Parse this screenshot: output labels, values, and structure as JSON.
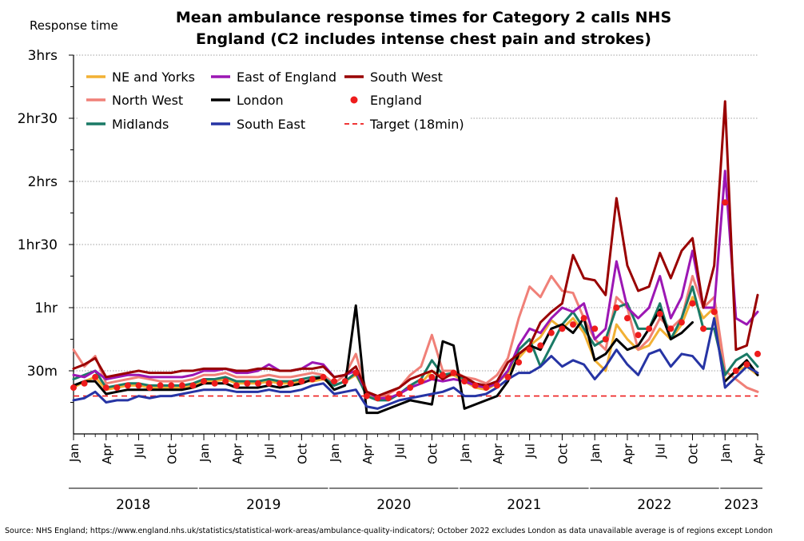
{
  "chart_data": {
    "type": "line",
    "title": [
      "Mean ambulance response times for Category 2 calls NHS",
      "England (C2 includes intense chest pain and strokes)"
    ],
    "ylabel": "Response time",
    "y_unit": "minutes",
    "ylim": [
      0,
      180
    ],
    "y_ticks": [
      {
        "value": 30,
        "label": "30m"
      },
      {
        "value": 60,
        "label": "1hr"
      },
      {
        "value": 90,
        "label": "1hr30"
      },
      {
        "value": 120,
        "label": "2hrs"
      },
      {
        "value": 150,
        "label": "2hr30"
      },
      {
        "value": 180,
        "label": "3hrs"
      }
    ],
    "grid": true,
    "legend_position": "top-left",
    "x_start": "2018-01",
    "x_end": "2023-04",
    "x": [
      "2018-01",
      "2018-02",
      "2018-03",
      "2018-04",
      "2018-05",
      "2018-06",
      "2018-07",
      "2018-08",
      "2018-09",
      "2018-10",
      "2018-11",
      "2018-12",
      "2019-01",
      "2019-02",
      "2019-03",
      "2019-04",
      "2019-05",
      "2019-06",
      "2019-07",
      "2019-08",
      "2019-09",
      "2019-10",
      "2019-11",
      "2019-12",
      "2020-01",
      "2020-02",
      "2020-03",
      "2020-04",
      "2020-05",
      "2020-06",
      "2020-07",
      "2020-08",
      "2020-09",
      "2020-10",
      "2020-11",
      "2020-12",
      "2021-01",
      "2021-02",
      "2021-03",
      "2021-04",
      "2021-05",
      "2021-06",
      "2021-07",
      "2021-08",
      "2021-09",
      "2021-10",
      "2021-11",
      "2021-12",
      "2022-01",
      "2022-02",
      "2022-03",
      "2022-04",
      "2022-05",
      "2022-06",
      "2022-07",
      "2022-08",
      "2022-09",
      "2022-10",
      "2022-11",
      "2022-12",
      "2023-01",
      "2023-02",
      "2023-03",
      "2023-04"
    ],
    "x_tick_labels": [
      {
        "x": "2018-01",
        "label": "Jan"
      },
      {
        "x": "2018-04",
        "label": "Apr"
      },
      {
        "x": "2018-07",
        "label": "Jul"
      },
      {
        "x": "2018-10",
        "label": "Oct"
      },
      {
        "x": "2019-01",
        "label": "Jan"
      },
      {
        "x": "2019-04",
        "label": "Apr"
      },
      {
        "x": "2019-07",
        "label": "Jul"
      },
      {
        "x": "2019-10",
        "label": "Oct"
      },
      {
        "x": "2020-01",
        "label": "Jan"
      },
      {
        "x": "2020-04",
        "label": "Apr"
      },
      {
        "x": "2020-07",
        "label": "Jul"
      },
      {
        "x": "2020-10",
        "label": "Oct"
      },
      {
        "x": "2021-01",
        "label": "Jan"
      },
      {
        "x": "2021-04",
        "label": "Apr"
      },
      {
        "x": "2021-07",
        "label": "Jul"
      },
      {
        "x": "2021-10",
        "label": "Oct"
      },
      {
        "x": "2022-01",
        "label": "Jan"
      },
      {
        "x": "2022-04",
        "label": "Apr"
      },
      {
        "x": "2022-07",
        "label": "Jul"
      },
      {
        "x": "2022-10",
        "label": "Oct"
      },
      {
        "x": "2023-01",
        "label": "Jan"
      },
      {
        "x": "2023-04",
        "label": "Apr"
      }
    ],
    "year_groups": [
      {
        "label": "2018",
        "from": "2018-01",
        "to": "2018-12"
      },
      {
        "label": "2019",
        "from": "2019-01",
        "to": "2019-12"
      },
      {
        "label": "2020",
        "from": "2020-01",
        "to": "2020-12"
      },
      {
        "label": "2021",
        "from": "2021-01",
        "to": "2021-12"
      },
      {
        "label": "2022",
        "from": "2022-01",
        "to": "2022-12"
      },
      {
        "label": "2023",
        "from": "2023-01",
        "to": "2023-04"
      }
    ],
    "target": {
      "name": "Target (18min)",
      "value": 18,
      "color": "#ee1c1c"
    },
    "series": [
      {
        "name": "NE and Yorks",
        "color": "#f2b134",
        "style": "line",
        "values": [
          22,
          25,
          27,
          21,
          22,
          23,
          23,
          22,
          22,
          22,
          22,
          23,
          25,
          25,
          26,
          24,
          24,
          24,
          25,
          24,
          24,
          25,
          25,
          26,
          23,
          25,
          28,
          19,
          17,
          17,
          19,
          22,
          24,
          30,
          27,
          28,
          25,
          22,
          21,
          24,
          29,
          36,
          42,
          46,
          54,
          50,
          55,
          48,
          35,
          30,
          52,
          45,
          40,
          42,
          50,
          45,
          52,
          65,
          55,
          60,
          25,
          30,
          32,
          28
        ]
      },
      {
        "name": "North West",
        "color": "#f08078",
        "style": "line",
        "values": [
          40,
          32,
          37,
          24,
          25,
          26,
          27,
          26,
          25,
          25,
          25,
          26,
          28,
          28,
          29,
          27,
          27,
          27,
          28,
          27,
          27,
          28,
          29,
          28,
          24,
          28,
          38,
          20,
          18,
          19,
          22,
          28,
          32,
          47,
          30,
          30,
          27,
          26,
          24,
          28,
          36,
          55,
          70,
          65,
          75,
          68,
          67,
          55,
          45,
          40,
          65,
          60,
          40,
          45,
          55,
          50,
          55,
          75,
          60,
          65,
          30,
          26,
          22,
          20
        ]
      },
      {
        "name": "Midlands",
        "color": "#1a7a66",
        "style": "line",
        "values": [
          26,
          28,
          30,
          22,
          23,
          24,
          24,
          23,
          23,
          23,
          23,
          24,
          26,
          26,
          27,
          25,
          25,
          25,
          26,
          25,
          25,
          26,
          27,
          27,
          23,
          25,
          29,
          18,
          16,
          16,
          19,
          23,
          26,
          35,
          28,
          29,
          26,
          24,
          22,
          24,
          30,
          40,
          45,
          32,
          42,
          52,
          58,
          50,
          42,
          45,
          60,
          62,
          50,
          50,
          62,
          45,
          55,
          70,
          50,
          50,
          28,
          35,
          38,
          32
        ]
      },
      {
        "name": "East of England",
        "color": "#9c17b4",
        "style": "line",
        "values": [
          28,
          27,
          30,
          26,
          27,
          28,
          28,
          27,
          27,
          27,
          27,
          28,
          30,
          30,
          31,
          29,
          29,
          30,
          33,
          30,
          30,
          31,
          34,
          33,
          27,
          28,
          30,
          20,
          17,
          17,
          19,
          22,
          24,
          26,
          25,
          26,
          25,
          23,
          22,
          24,
          30,
          42,
          50,
          48,
          55,
          60,
          58,
          62,
          45,
          50,
          82,
          60,
          55,
          60,
          75,
          55,
          65,
          87,
          60,
          60,
          125,
          55,
          52,
          58
        ]
      },
      {
        "name": "London",
        "color": "#000000",
        "style": "line",
        "values": [
          23,
          25,
          25,
          19,
          20,
          21,
          21,
          21,
          21,
          21,
          21,
          22,
          24,
          24,
          24,
          22,
          22,
          22,
          23,
          22,
          23,
          24,
          26,
          27,
          21,
          23,
          61,
          10,
          10,
          12,
          14,
          16,
          15,
          14,
          44,
          42,
          12,
          14,
          16,
          18,
          25,
          38,
          42,
          40,
          50,
          52,
          48,
          55,
          35,
          38,
          45,
          40,
          42,
          50,
          59,
          45,
          48,
          53,
          null,
          null,
          25,
          30,
          35,
          28
        ]
      },
      {
        "name": "South East",
        "color": "#2634a4",
        "style": "line",
        "values": [
          16,
          17,
          20,
          15,
          16,
          16,
          18,
          17,
          18,
          18,
          19,
          20,
          21,
          21,
          21,
          20,
          20,
          20,
          21,
          20,
          20,
          21,
          23,
          24,
          19,
          20,
          21,
          13,
          12,
          14,
          16,
          17,
          18,
          19,
          20,
          22,
          18,
          18,
          19,
          22,
          26,
          29,
          29,
          32,
          37,
          32,
          35,
          33,
          26,
          32,
          40,
          33,
          28,
          38,
          40,
          32,
          38,
          37,
          31,
          55,
          22,
          27,
          32,
          29
        ]
      },
      {
        "name": "South West",
        "color": "#990000",
        "style": "line",
        "values": [
          31,
          33,
          36,
          27,
          28,
          29,
          30,
          29,
          29,
          29,
          30,
          30,
          31,
          31,
          31,
          30,
          30,
          31,
          31,
          30,
          30,
          31,
          31,
          32,
          27,
          28,
          32,
          20,
          18,
          20,
          22,
          26,
          28,
          30,
          26,
          29,
          27,
          24,
          23,
          25,
          34,
          38,
          42,
          53,
          58,
          62,
          85,
          74,
          73,
          66,
          112,
          80,
          68,
          70,
          86,
          74,
          87,
          93,
          60,
          80,
          158,
          40,
          42,
          66
        ]
      },
      {
        "name": "England",
        "color": "#ee1c1c",
        "style": "dots",
        "values": [
          22,
          24,
          27,
          22,
          22,
          23,
          23,
          22,
          23,
          23,
          23,
          23,
          25,
          24,
          25,
          23,
          24,
          24,
          24,
          24,
          24,
          25,
          26,
          27,
          25,
          25,
          29,
          18,
          17,
          17,
          19,
          22,
          25,
          27,
          28,
          29,
          25,
          23,
          22,
          23,
          27,
          34,
          40,
          42,
          48,
          50,
          52,
          55,
          50,
          45,
          60,
          55,
          47,
          50,
          57,
          50,
          53,
          62,
          50,
          58,
          110,
          30,
          33,
          38
        ]
      }
    ]
  },
  "source": "Source: NHS England; https://www.england.nhs.uk/statistics/statistical-work-areas/ambulance-quality-indicators/; October 2022 excludes London as data unavailable average is of regions except London"
}
